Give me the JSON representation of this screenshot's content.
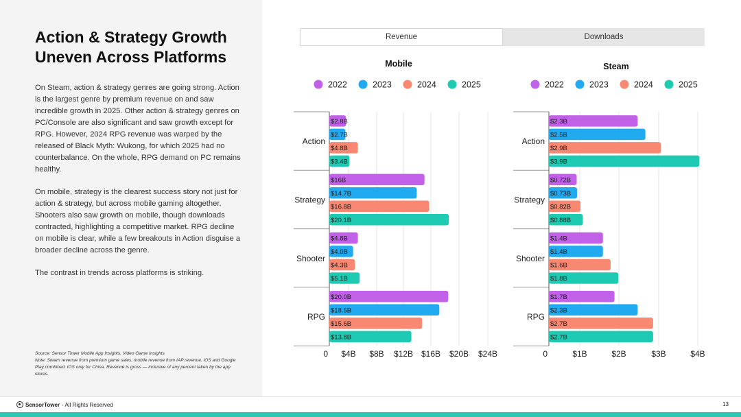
{
  "title": "Action & Strategy Growth Uneven Across Platforms",
  "paragraphs": [
    "On Steam, action & strategy genres are going strong. Action is the largest genre by premium revenue on and saw incredible growth in 2025. Other action & strategy genres on PC/Console are also significant and saw growth except for RPG. However, 2024 RPG revenue was warped by the released of Black Myth: Wukong, for which 2025 had no counterbalance. On the whole, RPG demand on PC remains healthy.",
    "On mobile, strategy is the clearest success story not just for action & strategy, but across mobile gaming altogether. Shooters also saw growth on mobile, though downloads contracted, highlighting a competitive market. RPG decline on mobile is clear, while a few breakouts in Action disguise a broader decline across the genre.",
    "The contrast in trends across platforms is striking."
  ],
  "source_line": "Source: Sensor Tower Mobile App Insights, Video Game Insights",
  "note_line": "Note: Steam revenue from premium game sales; mobile revenue from IAP revenue. iOS and Google Play combined. iOS only for China. Revenue is gross — inclusive of any percent taken by the app stores.",
  "tabs": [
    {
      "label": "Revenue",
      "active": true
    },
    {
      "label": "Downloads",
      "active": false
    }
  ],
  "footer": {
    "brand": "SensorTower",
    "rights": "- All Rights Reserved",
    "page": "13"
  },
  "colors": {
    "2022": "#c061e8",
    "2023": "#21aaf0",
    "2024": "#f98872",
    "2025": "#1ecbb2"
  },
  "chart_data": [
    {
      "type": "bar",
      "orientation": "horizontal",
      "title": "Mobile",
      "categories": [
        "Action",
        "Strategy",
        "Shooter",
        "RPG"
      ],
      "series": [
        {
          "name": "2022",
          "values": [
            2.8,
            16,
            4.8,
            20.0
          ],
          "labels": [
            "$2.8B",
            "$16B",
            "$4.8B",
            "$20.0B"
          ]
        },
        {
          "name": "2023",
          "values": [
            2.7,
            14.7,
            4.0,
            18.5
          ],
          "labels": [
            "$2.7B",
            "$14.7B",
            "$4.0B",
            "$18.5B"
          ]
        },
        {
          "name": "2024",
          "values": [
            4.8,
            16.8,
            4.3,
            15.6
          ],
          "labels": [
            "$4.8B",
            "$16.8B",
            "$4.3B",
            "$15.6B"
          ]
        },
        {
          "name": "2025",
          "values": [
            3.4,
            20.1,
            5.1,
            13.8
          ],
          "labels": [
            "$3.4B",
            "$20.1B",
            "$5.1B",
            "$13.8B"
          ]
        }
      ],
      "xlim": [
        0,
        24
      ],
      "xticks": [
        0,
        4,
        8,
        12,
        16,
        20,
        24
      ],
      "xtick_labels": [
        "0",
        "$4B",
        "$8B",
        "$12B",
        "$16B",
        "$20B",
        "$24B"
      ],
      "legend": "top",
      "grid": true
    },
    {
      "type": "bar",
      "orientation": "horizontal",
      "title": "Steam",
      "categories": [
        "Action",
        "Strategy",
        "Shooter",
        "RPG"
      ],
      "series": [
        {
          "name": "2022",
          "values": [
            2.3,
            0.72,
            1.4,
            1.7
          ],
          "labels": [
            "$2.3B",
            "$0.72B",
            "$1.4B",
            "$1.7B"
          ]
        },
        {
          "name": "2023",
          "values": [
            2.5,
            0.73,
            1.4,
            2.3
          ],
          "labels": [
            "$2.5B",
            "$0.73B",
            "$1.4B",
            "$2.3B"
          ]
        },
        {
          "name": "2024",
          "values": [
            2.9,
            0.82,
            1.6,
            2.7
          ],
          "labels": [
            "$2.9B",
            "$0.82B",
            "$1.6B",
            "$2.7B"
          ]
        },
        {
          "name": "2025",
          "values": [
            3.9,
            0.88,
            1.8,
            2.7
          ],
          "labels": [
            "$3.9B",
            "$0.88B",
            "$1.8B",
            "$2.7B"
          ]
        }
      ],
      "xlim": [
        0,
        4
      ],
      "xticks": [
        0,
        1,
        2,
        3,
        4
      ],
      "xtick_labels": [
        "0",
        "$1B",
        "$2B",
        "$3B",
        "$4B"
      ],
      "legend": "top",
      "grid": true
    }
  ]
}
